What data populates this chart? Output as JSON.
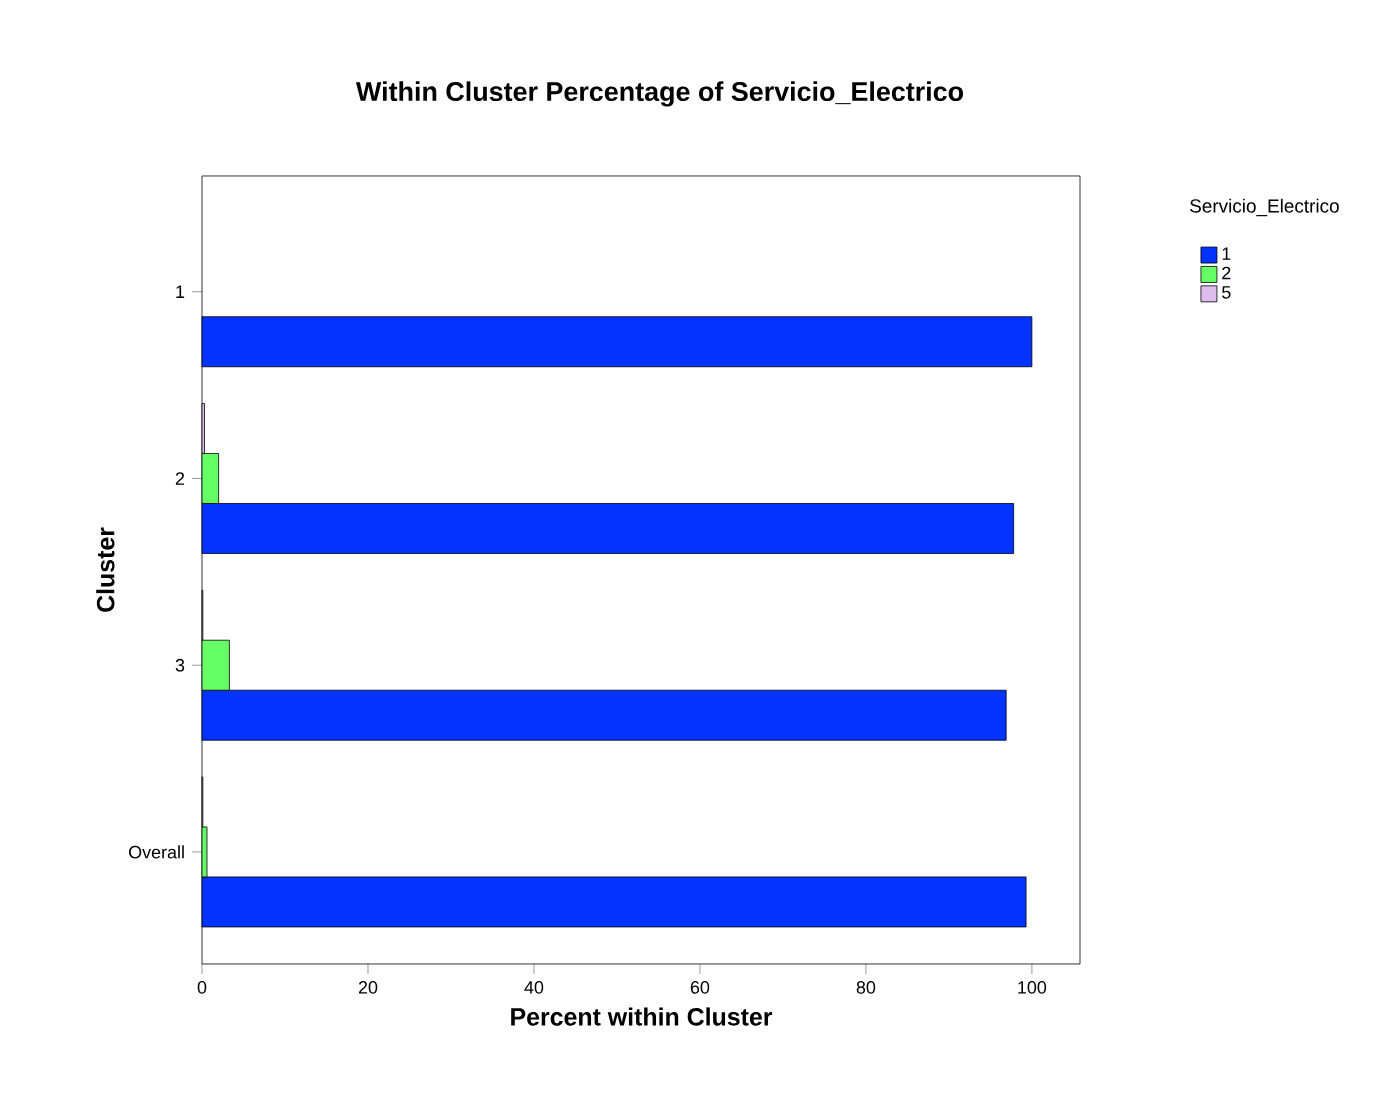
{
  "chart_data": {
    "type": "bar",
    "orientation": "horizontal",
    "title": "Within Cluster Percentage of Servicio_Electrico",
    "xlabel": "Percent within Cluster",
    "ylabel": "Cluster",
    "legend_title": "Servicio_Electrico",
    "categories": [
      "1",
      "2",
      "3",
      "Overall"
    ],
    "series": [
      {
        "name": "1",
        "color": "#0433ff",
        "values": [
          100,
          97.8,
          96.9,
          99.3
        ]
      },
      {
        "name": "2",
        "color": "#66ff66",
        "values": [
          null,
          2.0,
          3.3,
          0.6
        ]
      },
      {
        "name": "5",
        "color": "#dfbcee",
        "values": [
          null,
          0.3,
          0.1,
          0.1
        ]
      }
    ],
    "xlim": [
      0,
      105.8
    ],
    "xticks": [
      0,
      20,
      40,
      60,
      80,
      100
    ],
    "grid": false,
    "legend": "top right"
  }
}
